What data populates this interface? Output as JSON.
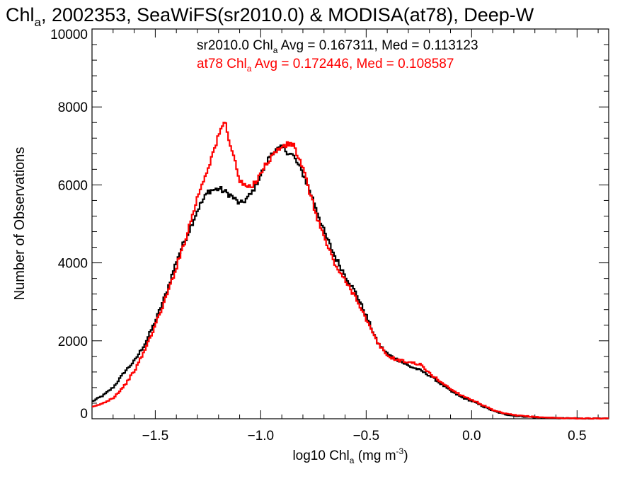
{
  "chart_data": {
    "type": "line",
    "title": {
      "prefix": "Chl",
      "prefix_sub": "a",
      "rest": ", 2002353, SeaWiFS(sr2010.0) & MODISA(at78), Deep-W"
    },
    "xlabel": {
      "prefix": "log10 Chl",
      "sub": "a",
      "mid": " (mg m",
      "sup": "-3",
      "end": ")"
    },
    "ylabel": "Number of Observations",
    "xlim": [
      -1.8,
      0.65
    ],
    "ylim": [
      0,
      10000
    ],
    "x_ticks": [
      -1.5,
      -1.0,
      -0.5,
      0.0,
      0.5
    ],
    "x_tick_labels": [
      "−1.5",
      "−1.0",
      "−0.5",
      "0.0",
      "0.5"
    ],
    "y_ticks": [
      0,
      2000,
      4000,
      6000,
      8000,
      10000
    ],
    "y_tick_labels": [
      "0",
      "2000",
      "4000",
      "6000",
      "8000",
      "10000"
    ],
    "grid": false,
    "legend_position": "top-right",
    "series": [
      {
        "name": "sr2010.0",
        "color": "#000000",
        "annotation": {
          "prefix": "sr2010.0 Chl",
          "sub": "a",
          "rest": " Avg = 0.167311, Med = 0.113123"
        },
        "x": [
          -1.8,
          -1.75,
          -1.7,
          -1.65,
          -1.6,
          -1.55,
          -1.5,
          -1.45,
          -1.4,
          -1.35,
          -1.3,
          -1.25,
          -1.2,
          -1.15,
          -1.1,
          -1.05,
          -1.0,
          -0.95,
          -0.9,
          -0.85,
          -0.8,
          -0.75,
          -0.7,
          -0.65,
          -0.6,
          -0.55,
          -0.5,
          -0.45,
          -0.4,
          -0.35,
          -0.3,
          -0.25,
          -0.2,
          -0.15,
          -0.1,
          -0.05,
          0.0,
          0.05,
          0.1,
          0.15,
          0.2,
          0.3,
          0.4,
          0.5,
          0.6,
          0.65
        ],
        "y": [
          450,
          600,
          820,
          1200,
          1500,
          1950,
          2550,
          3250,
          4100,
          4750,
          5400,
          5850,
          5900,
          5750,
          5500,
          5750,
          6300,
          6850,
          6950,
          6750,
          6250,
          5550,
          4750,
          4150,
          3650,
          3200,
          2600,
          1950,
          1650,
          1500,
          1350,
          1250,
          1100,
          900,
          700,
          550,
          450,
          320,
          200,
          120,
          75,
          35,
          15,
          8,
          4,
          3
        ]
      },
      {
        "name": "at78",
        "color": "#ff0000",
        "annotation": {
          "prefix": "at78 Chl",
          "sub": "a",
          "rest": " Avg = 0.172446, Med = 0.108587"
        },
        "x": [
          -1.8,
          -1.75,
          -1.7,
          -1.65,
          -1.6,
          -1.55,
          -1.5,
          -1.45,
          -1.4,
          -1.35,
          -1.3,
          -1.25,
          -1.2,
          -1.175,
          -1.15,
          -1.1,
          -1.05,
          -1.0,
          -0.95,
          -0.9,
          -0.85,
          -0.8,
          -0.75,
          -0.7,
          -0.65,
          -0.6,
          -0.55,
          -0.5,
          -0.45,
          -0.4,
          -0.35,
          -0.3,
          -0.25,
          -0.2,
          -0.15,
          -0.1,
          -0.05,
          0.0,
          0.05,
          0.1,
          0.15,
          0.2,
          0.3,
          0.4,
          0.5,
          0.6,
          0.65
        ],
        "y": [
          300,
          400,
          550,
          850,
          1250,
          1800,
          2450,
          3150,
          3950,
          4800,
          5750,
          6500,
          7300,
          7650,
          7100,
          6050,
          5900,
          6350,
          6750,
          7000,
          7050,
          6350,
          5400,
          4600,
          3950,
          3500,
          3100,
          2500,
          1950,
          1600,
          1500,
          1450,
          1400,
          1150,
          950,
          750,
          600,
          480,
          350,
          210,
          140,
          90,
          45,
          20,
          10,
          6,
          4
        ]
      }
    ]
  }
}
